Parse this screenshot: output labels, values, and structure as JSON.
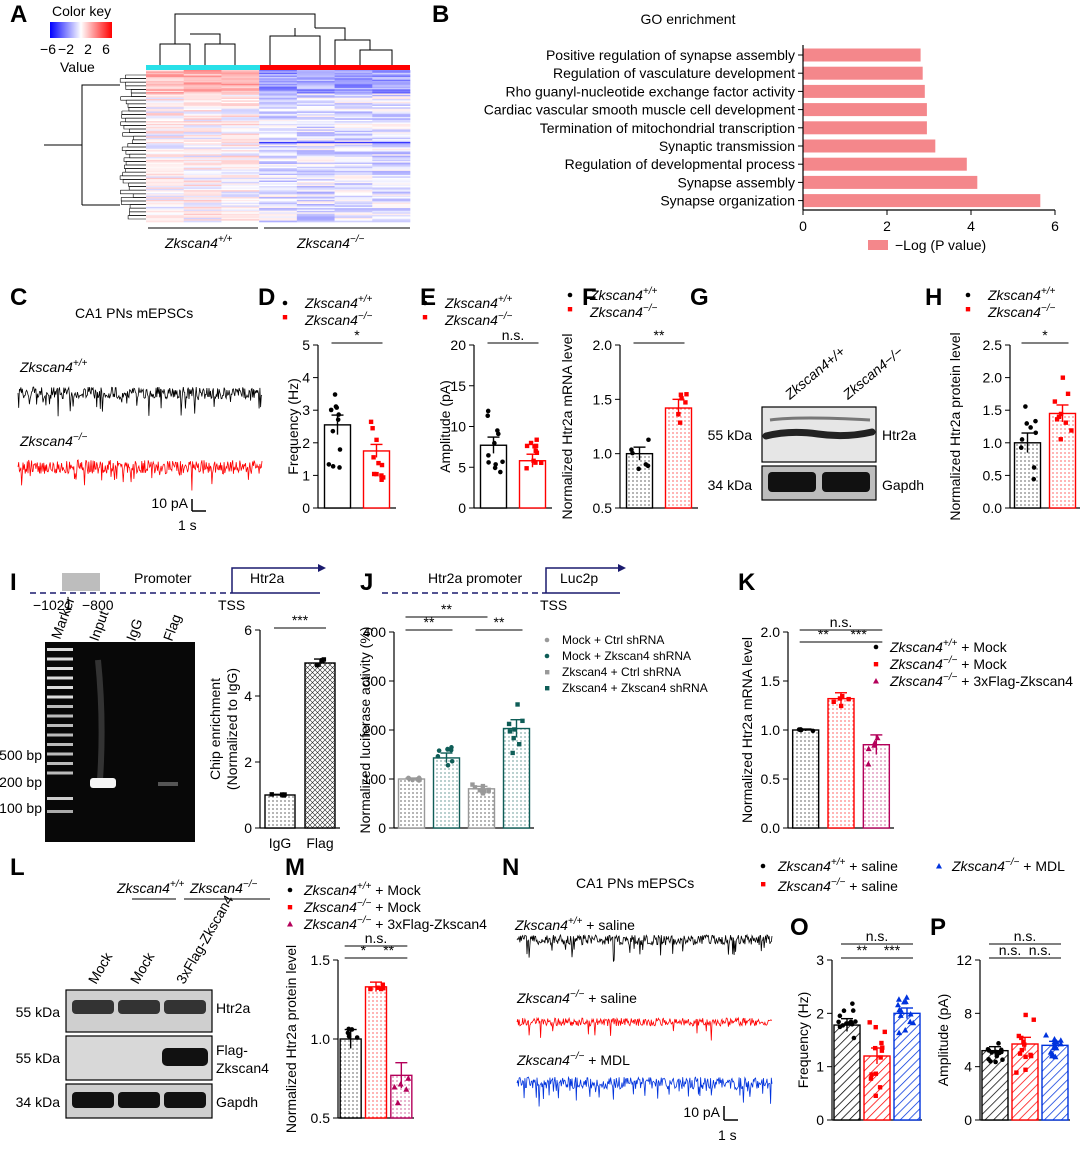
{
  "panel_labels": [
    "A",
    "B",
    "C",
    "D",
    "E",
    "F",
    "G",
    "H",
    "I",
    "J",
    "K",
    "L",
    "M",
    "N",
    "O",
    "P"
  ],
  "colors": {
    "wt": "#000000",
    "ko": "#ff0000",
    "mdl": "#0033dd",
    "go_bar": "#f4878b",
    "cyan": "#28e0e8",
    "teal": "#0e5d57",
    "magenta": "#b4005a"
  },
  "heatmap": {
    "color_key_title": "Color key",
    "color_key_ticks": [
      "−6",
      "−2",
      "2",
      "6"
    ],
    "value_label": "Value",
    "group_wt": "Zkscan4+/+",
    "group_ko": "Zkscan4−/−"
  },
  "genotype": {
    "wt_base": "Zkscan4",
    "wt_sup": "+/+",
    "ko_base": "Zkscan4",
    "ko_sup": "−/−"
  },
  "go": {
    "title": "GO enrichment",
    "legend": "−Log (P value)",
    "terms": [
      "Positive regulation of synapse assembly",
      "Regulation of vasculature development",
      "Rho guanyl-nucleotide exchange factor activity",
      "Cardiac vascular smooth muscle cell development",
      "Termination of mitochondrial transcription",
      "Synaptic transmission",
      "Regulation of developmental process",
      "Synapse assembly",
      "Synapse organization"
    ],
    "values": [
      2.8,
      2.85,
      2.9,
      2.95,
      2.95,
      3.15,
      3.9,
      4.15,
      5.65
    ],
    "xticks": [
      "0",
      "2",
      "4",
      "6"
    ],
    "xlim": [
      0,
      6
    ]
  },
  "panel_c": {
    "title": "CA1 PNs mEPSCs",
    "scale_y": "10 pA",
    "scale_x": "1 s"
  },
  "panel_g": {
    "lane_wt": "Zkscan4+/+",
    "lane_ko": "Zkscan4−/−",
    "kda1": "55 kDa",
    "kda2": "34 kDa",
    "band1": "Htr2a",
    "band2": "Gapdh"
  },
  "panel_i": {
    "promoter": "Promoter",
    "gene": "Htr2a",
    "pos1": "−1021",
    "pos2": "−800",
    "tss": "TSS",
    "lanes": [
      "Marker",
      "Input",
      "IgG",
      "Flag"
    ],
    "bp": [
      "500 bp",
      "200 bp",
      "100 bp"
    ]
  },
  "panel_j": {
    "promoter": "Htr2a promoter",
    "gene": "Luc2p",
    "tss": "TSS",
    "legend": [
      "Mock + Ctrl shRNA",
      "Mock + Zkscan4 shRNA",
      "Zkscan4 + Ctrl shRNA",
      "Zkscan4 + Zkscan4 shRNA"
    ]
  },
  "legend_k": {
    "mock": "+ Mock",
    "flag": "+ 3xFlag-Zkscan4"
  },
  "panel_l": {
    "group_wt": "Zkscan4+/+",
    "group_ko": "Zkscan4−/−",
    "lanes": [
      "Mock",
      "Mock",
      "3xFlag-Zkscan4"
    ],
    "kda": [
      "55 kDa",
      "55 kDa",
      "34 kDa"
    ],
    "bands": [
      "Htr2a",
      "Flag-",
      "Zkscan4",
      "Gapdh"
    ]
  },
  "panel_n": {
    "title": "CA1 PNs mEPSCs",
    "trace_labels": [
      "+ saline",
      "+ saline",
      "+ MDL"
    ],
    "legend": [
      "+ saline",
      "+ saline",
      "+ MDL"
    ],
    "scale_y": "10 pA",
    "scale_x": "1 s"
  },
  "chart_data": [
    {
      "panel": "D",
      "type": "bar",
      "ylabel": "Frequency (Hz)",
      "ylim": [
        0,
        5
      ],
      "yticks": [
        "0",
        "1",
        "2",
        "3",
        "4",
        "5"
      ],
      "categories": [
        "Zkscan4+/+",
        "Zkscan4−/−"
      ],
      "values": [
        2.55,
        1.75
      ],
      "errors": [
        0.3,
        0.2
      ],
      "sig": [
        "*"
      ]
    },
    {
      "panel": "E",
      "type": "bar",
      "ylabel": "Amplitude (pA)",
      "ylim": [
        0,
        20
      ],
      "yticks": [
        "0",
        "5",
        "10",
        "15",
        "20"
      ],
      "categories": [
        "Zkscan4+/+",
        "Zkscan4−/−"
      ],
      "values": [
        7.7,
        5.8
      ],
      "errors": [
        1.0,
        0.8
      ],
      "sig": [
        "n.s."
      ]
    },
    {
      "panel": "F",
      "type": "bar",
      "ylabel": "Normalized Htr2a mRNA level",
      "ylim": [
        0.5,
        2.0
      ],
      "yticks": [
        "0.5",
        "1.0",
        "1.5",
        "2.0"
      ],
      "categories": [
        "Zkscan4+/+",
        "Zkscan4−/−"
      ],
      "values": [
        1.0,
        1.42
      ],
      "errors": [
        0.06,
        0.08
      ],
      "sig": [
        "**"
      ]
    },
    {
      "panel": "H",
      "type": "bar",
      "ylabel": "Normalized Htr2a protein level",
      "ylim": [
        0,
        2.5
      ],
      "yticks": [
        "0.0",
        "0.5",
        "1.0",
        "1.5",
        "2.0",
        "2.5"
      ],
      "categories": [
        "Zkscan4+/+",
        "Zkscan4−/−"
      ],
      "values": [
        1.0,
        1.45
      ],
      "errors": [
        0.15,
        0.13
      ],
      "sig": [
        "*"
      ]
    },
    {
      "panel": "I",
      "type": "bar",
      "ylabel": "Chip enrichment (Normalized to IgG)",
      "ylim": [
        0,
        6
      ],
      "yticks": [
        "0",
        "2",
        "4",
        "6"
      ],
      "categories": [
        "IgG",
        "Flag"
      ],
      "values": [
        1.0,
        5.0
      ],
      "errors": [
        0.02,
        0.12
      ],
      "sig": [
        "***"
      ]
    },
    {
      "panel": "J",
      "type": "bar",
      "ylabel": "Normalized luciferase activity (%)",
      "ylim": [
        0,
        400
      ],
      "yticks": [
        "0",
        "100",
        "200",
        "300",
        "400"
      ],
      "categories": [
        "Mock + Ctrl shRNA",
        "Mock + Zkscan4 shRNA",
        "Zkscan4 + Ctrl shRNA",
        "Zkscan4 + Zkscan4 shRNA"
      ],
      "values": [
        100,
        143,
        80,
        203
      ],
      "errors": [
        2,
        10,
        5,
        18
      ],
      "sig": [
        "**",
        "**",
        "**"
      ]
    },
    {
      "panel": "K",
      "type": "bar",
      "ylabel": "Normalized Htr2a mRNA level",
      "ylim": [
        0,
        2.0
      ],
      "yticks": [
        "0.0",
        "0.5",
        "1.0",
        "1.5",
        "2.0"
      ],
      "categories": [
        "Zkscan4+/+ + Mock",
        "Zkscan4−/− + Mock",
        "Zkscan4−/− + 3xFlag-Zkscan4"
      ],
      "values": [
        1.0,
        1.32,
        0.85
      ],
      "errors": [
        0.01,
        0.06,
        0.1
      ],
      "sig": [
        "n.s.",
        "**",
        "***"
      ]
    },
    {
      "panel": "M",
      "type": "bar",
      "ylabel": "Normalized Htr2a protein level",
      "ylim": [
        0.5,
        1.5
      ],
      "yticks": [
        "0.5",
        "1.0",
        "1.5"
      ],
      "categories": [
        "Zkscan4+/+ + Mock",
        "Zkscan4−/− + Mock",
        "Zkscan4−/− + 3xFlag-Zkscan4"
      ],
      "values": [
        1.0,
        1.33,
        0.77
      ],
      "errors": [
        0.06,
        0.03,
        0.08
      ],
      "sig": [
        "n.s.",
        "*",
        "**"
      ]
    },
    {
      "panel": "O",
      "type": "bar",
      "ylabel": "Frequency (Hz)",
      "ylim": [
        0,
        3
      ],
      "yticks": [
        "0",
        "1",
        "2",
        "3"
      ],
      "categories": [
        "Zkscan4+/+ + saline",
        "Zkscan4−/− + saline",
        "Zkscan4−/− + MDL"
      ],
      "values": [
        1.78,
        1.2,
        2.0
      ],
      "errors": [
        0.12,
        0.15,
        0.1
      ],
      "sig": [
        "n.s.",
        "**",
        "***"
      ]
    },
    {
      "panel": "P",
      "type": "bar",
      "ylabel": "Amplitude (pA)",
      "ylim": [
        0,
        12
      ],
      "yticks": [
        "0",
        "4",
        "8",
        "12"
      ],
      "categories": [
        "Zkscan4+/+ + saline",
        "Zkscan4−/− + saline",
        "Zkscan4−/− + MDL"
      ],
      "values": [
        5.2,
        5.7,
        5.6
      ],
      "errors": [
        0.3,
        0.5,
        0.3
      ],
      "sig": [
        "n.s.",
        "n.s.",
        "n.s."
      ]
    }
  ]
}
